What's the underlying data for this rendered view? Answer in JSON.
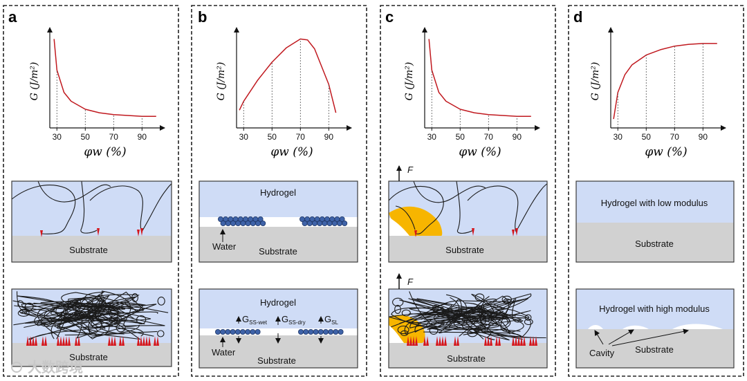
{
  "panels": [
    {
      "letter": "a",
      "ticks": [
        "30",
        "50",
        "70",
        "90"
      ],
      "substrate": "Substrate"
    },
    {
      "letter": "b",
      "ticks": [
        "30",
        "50",
        "70",
        "90"
      ],
      "hydrogel_top": "Hydrogel",
      "water_top": "Water",
      "substrate_top": "Substrate",
      "hydrogel_bottom": "Hydrogel",
      "water_bottom": "Water",
      "substrate_bottom": "Substrate",
      "g_ss_wet": "G",
      "g_ss_wet_sub": "SS-wet",
      "g_ss_dry": "G",
      "g_ss_dry_sub": "SS-dry",
      "g_sl": "G",
      "g_sl_sub": "SL"
    },
    {
      "letter": "c",
      "ticks": [
        "30",
        "50",
        "70",
        "90"
      ],
      "force_top": "F",
      "force_bottom": "F",
      "substrate_top": "Substrate",
      "substrate_bottom": "Substrate"
    },
    {
      "letter": "d",
      "ticks": [
        "30",
        "50",
        "70",
        "90"
      ],
      "hydrogel_low": "Hydrogel with low modulus",
      "substrate_top": "Substrate",
      "hydrogel_high": "Hydrogel with high modulus",
      "cavity": "Cavity",
      "substrate_bottom": "Substrate"
    }
  ],
  "axis": {
    "ylabel": "G (J/m²)",
    "xlabel": "φw (%)"
  },
  "watermark": "大数跨境",
  "chart_data": [
    {
      "type": "line",
      "panel": "a",
      "title": "",
      "xlabel": "φw (%)",
      "ylabel": "G (J/m²)",
      "x_ticks": [
        30,
        50,
        70,
        90
      ],
      "series": [
        {
          "name": "G",
          "x": [
            28,
            30,
            35,
            40,
            50,
            60,
            70,
            80,
            90,
            100
          ],
          "y": [
            10,
            6.5,
            4.0,
            3.0,
            2.1,
            1.7,
            1.5,
            1.4,
            1.3,
            1.3
          ]
        }
      ]
    },
    {
      "type": "line",
      "panel": "b",
      "title": "",
      "xlabel": "φw (%)",
      "ylabel": "G (J/m²)",
      "x_ticks": [
        30,
        50,
        70,
        90
      ],
      "series": [
        {
          "name": "G",
          "x": [
            27,
            30,
            40,
            50,
            60,
            70,
            75,
            80,
            90,
            95
          ],
          "y": [
            2.0,
            3.0,
            5.4,
            7.4,
            9.0,
            10.0,
            9.9,
            8.9,
            4.9,
            1.7
          ]
        }
      ]
    },
    {
      "type": "line",
      "panel": "c",
      "title": "",
      "xlabel": "φw (%)",
      "ylabel": "G (J/m²)",
      "x_ticks": [
        30,
        50,
        70,
        90
      ],
      "series": [
        {
          "name": "G",
          "x": [
            28,
            30,
            35,
            40,
            50,
            60,
            70,
            80,
            90,
            100
          ],
          "y": [
            10,
            6.5,
            4.0,
            3.0,
            2.1,
            1.7,
            1.5,
            1.4,
            1.3,
            1.3
          ]
        }
      ]
    },
    {
      "type": "line",
      "panel": "d",
      "title": "",
      "xlabel": "φw (%)",
      "ylabel": "G (J/m²)",
      "x_ticks": [
        30,
        50,
        70,
        90
      ],
      "series": [
        {
          "name": "G",
          "x": [
            27,
            30,
            35,
            40,
            50,
            60,
            70,
            80,
            90,
            100
          ],
          "y": [
            1.0,
            4.0,
            6.0,
            7.1,
            8.2,
            8.8,
            9.2,
            9.4,
            9.5,
            9.5
          ]
        }
      ]
    }
  ]
}
